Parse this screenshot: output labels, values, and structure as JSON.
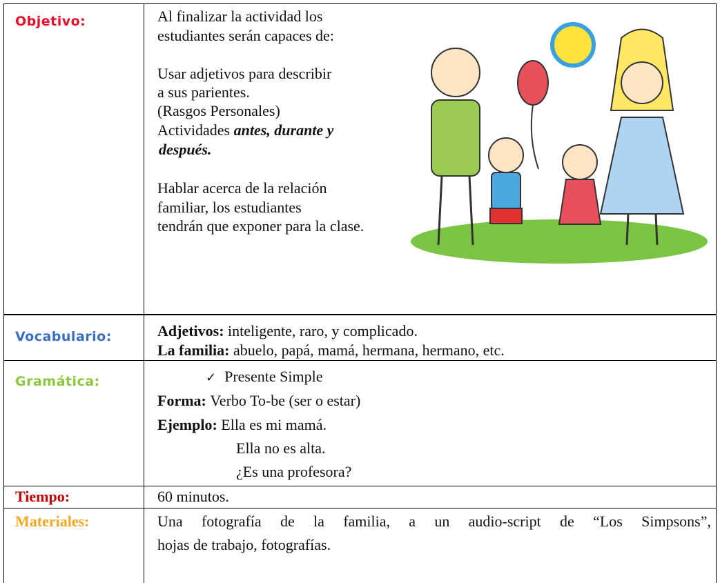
{
  "objective": {
    "label": "Objetivo:",
    "intro": [
      "Al finalizar la actividad los",
      "estudiantes serán capaces de:"
    ],
    "goal_one": [
      "Usar adjetivos para describir",
      "a sus parientes.",
      "(Rasgos Personales)"
    ],
    "activities": {
      "text": "Actividades",
      "emphasis": [
        "antes, durante y",
        "después."
      ]
    },
    "goal_two": [
      "Hablar acerca de la relación",
      "familiar, los estudiantes",
      "tendrán que exponer para la clase."
    ]
  },
  "vocabulary": {
    "label": "Vocabulario:",
    "items": [
      {
        "term": "Adjetivos:",
        "text": "inteligente, raro, y complicado."
      },
      {
        "term": "La familia:",
        "text": "abuelo, papá, mamá, hermana, hermano, etc."
      }
    ]
  },
  "grammar": {
    "label": "Gramática:",
    "topic": "Presente Simple",
    "form": {
      "term": "Forma:",
      "text": "Verbo To-be (ser o estar)"
    },
    "example": {
      "term": "Ejemplo:",
      "lines": [
        "Ella es mi mamá.",
        "Ella no es alta.",
        "¿Es una profesora?"
      ]
    }
  },
  "time": {
    "label": "Tiempo:",
    "text": "60 minutos."
  },
  "materials": {
    "label": "Materiales:",
    "lines": [
      "Una fotografía de la familia, a un audio-script de “Los Simpsons”,",
      "hojas de trabajo, fotografías."
    ]
  }
}
